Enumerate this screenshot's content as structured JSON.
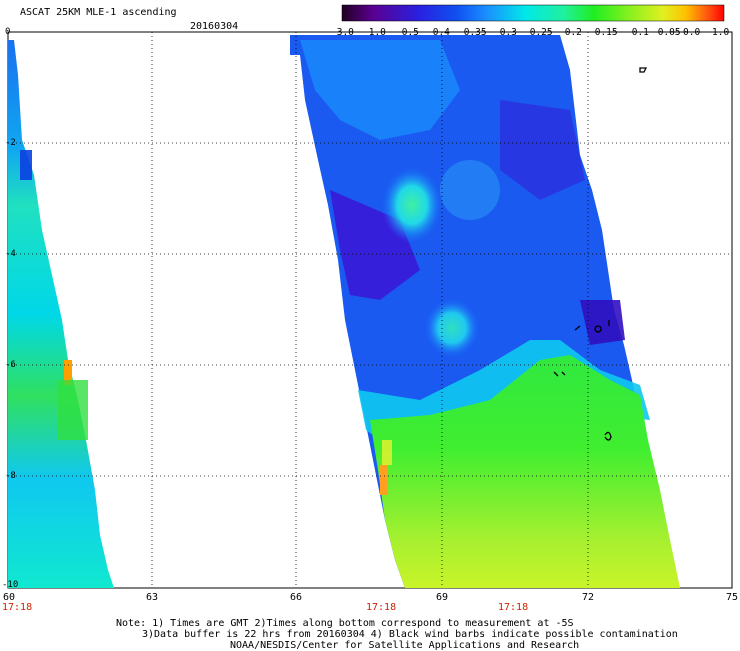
{
  "header": {
    "title": "ASCAT 25KM MLE-1 ascending",
    "date": "20160304"
  },
  "colorbar": {
    "labels": [
      "-3.0",
      "-1.0",
      "-0.5",
      "-0.4",
      "-0.35",
      "-0.3",
      "-0.25",
      "-0.2",
      "-0.15",
      "-0.1",
      "-0.05",
      "0.0",
      "1.0"
    ],
    "colors": [
      "#2a0030",
      "#5a0090",
      "#3a10d0",
      "#1a40f0",
      "#1a90ff",
      "#00ddee",
      "#20f0a0",
      "#20ee20",
      "#80f020",
      "#d0f020",
      "#ffd000",
      "#ff6010",
      "#ff1010"
    ]
  },
  "axes": {
    "x_ticks": [
      "60",
      "63",
      "66",
      "69",
      "72",
      "75"
    ],
    "y_ticks": [
      "0",
      "-2",
      "-4",
      "-6",
      "-8",
      "-10"
    ],
    "times": [
      "17:18",
      "17:18",
      "17:18"
    ]
  },
  "footer": {
    "note_line1": "Note: 1) Times are GMT 2)Times along bottom correspond to measurement at -5S",
    "note_line2": "3)Data buffer is 22 hrs from 20160304 4) Black wind barbs indicate possible contamination",
    "credit": "NOAA/NESDIS/Center for Satellite Applications and Research"
  }
}
